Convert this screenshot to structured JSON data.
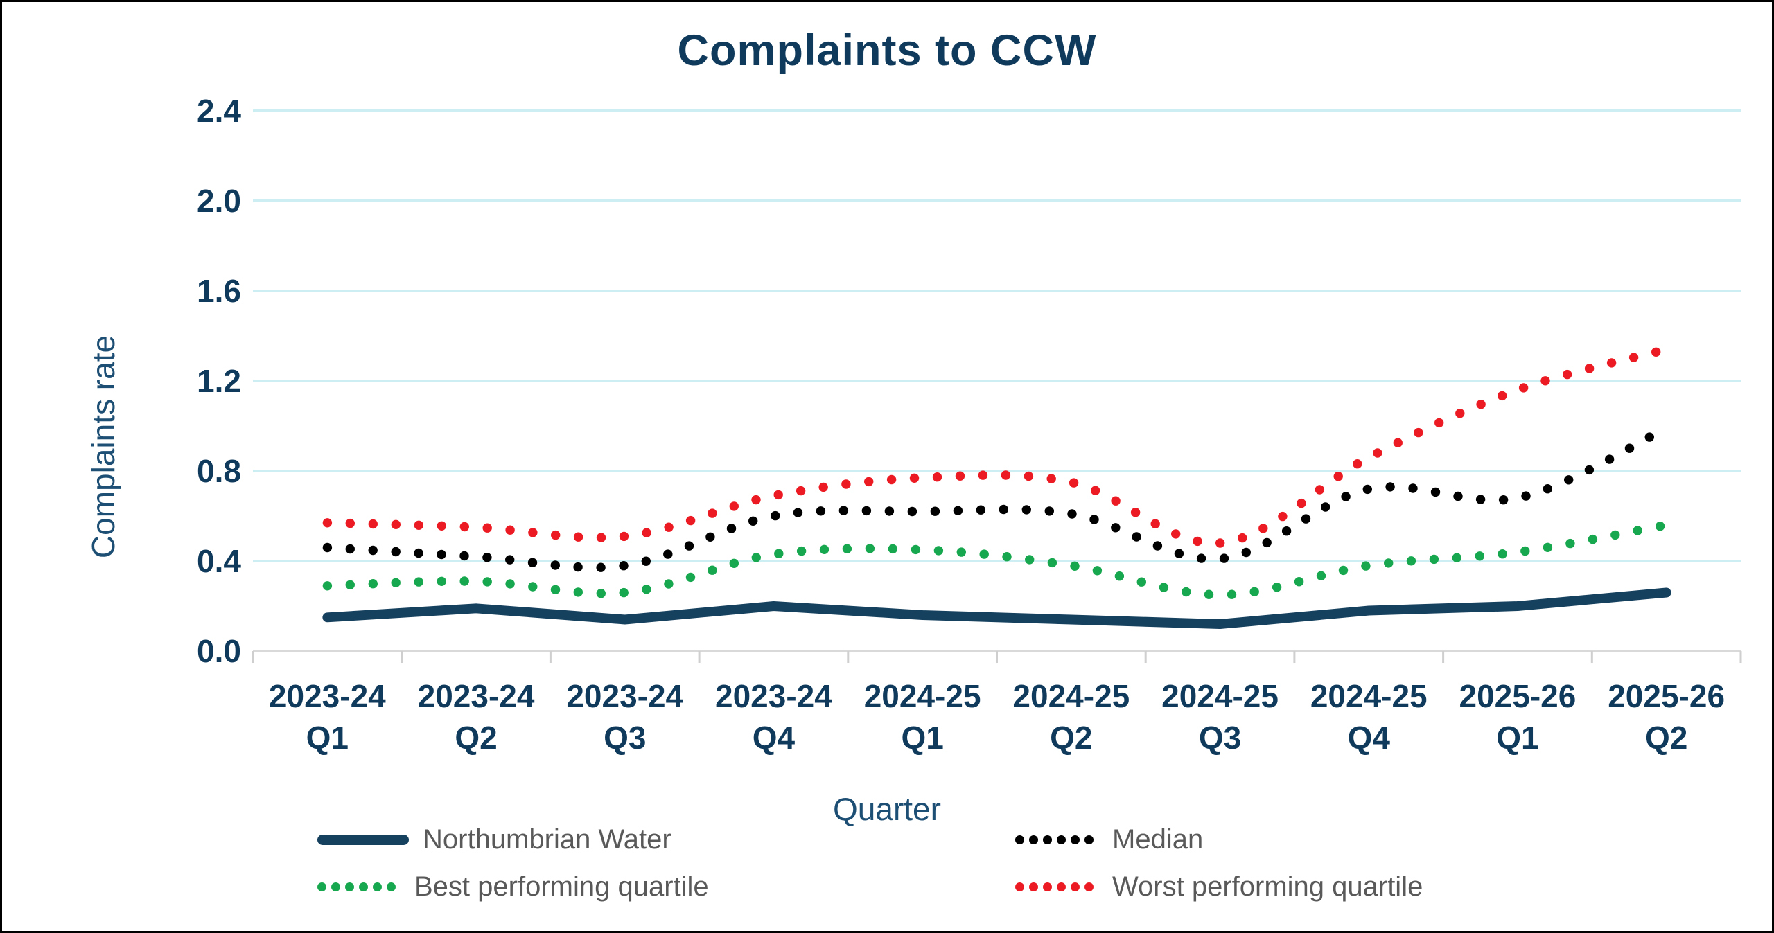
{
  "title": "Complaints to CCW",
  "y_axis": {
    "title": "Complaints rate",
    "tick_labels": [
      "0.0",
      "0.4",
      "0.8",
      "1.2",
      "1.6",
      "2.0",
      "2.4"
    ]
  },
  "x_axis": {
    "title": "Quarter",
    "tick_labels": [
      [
        "2023-24",
        "Q1"
      ],
      [
        "2023-24",
        "Q2"
      ],
      [
        "2023-24",
        "Q3"
      ],
      [
        "2023-24",
        "Q4"
      ],
      [
        "2024-25",
        "Q1"
      ],
      [
        "2024-25",
        "Q2"
      ],
      [
        "2024-25",
        "Q3"
      ],
      [
        "2024-25",
        "Q4"
      ],
      [
        "2025-26",
        "Q1"
      ],
      [
        "2025-26",
        "Q2"
      ]
    ]
  },
  "legend": {
    "items": [
      {
        "label": "Northumbrian Water",
        "style": "solid",
        "color": "#15405E"
      },
      {
        "label": "Median",
        "style": "dotted",
        "color": "#000000"
      },
      {
        "label": "Best performing quartile",
        "style": "dotted",
        "color": "#17A74E"
      },
      {
        "label": "Worst performing quartile",
        "style": "dotted",
        "color": "#EC1B23"
      }
    ]
  },
  "colors": {
    "title_text": "#0F3A5C",
    "tick_text": "#0F3A5C",
    "axis_title_text": "#1D4E74",
    "legend_text": "#595959",
    "gridline": "#CDEFF3",
    "axis_line": "#D9D9D9",
    "tick_mark": "#CFCFCF"
  },
  "chart_data": {
    "type": "line",
    "title": "Complaints to CCW",
    "xlabel": "Quarter",
    "ylabel": "Complaints rate",
    "ylim": [
      0,
      2.4
    ],
    "y_tick_step": 0.4,
    "grid": "horizontal",
    "legend_position": "bottom",
    "categories": [
      "2023-24 Q1",
      "2023-24 Q2",
      "2023-24 Q3",
      "2023-24 Q4",
      "2024-25 Q1",
      "2024-25 Q2",
      "2024-25 Q3",
      "2024-25 Q4",
      "2025-26 Q1",
      "2025-26 Q2"
    ],
    "series": [
      {
        "name": "Northumbrian Water",
        "style": "solid",
        "color": "#15405E",
        "values": [
          0.15,
          0.19,
          0.14,
          0.2,
          0.16,
          0.14,
          0.12,
          0.18,
          0.2,
          0.26
        ]
      },
      {
        "name": "Median",
        "style": "dotted",
        "color": "#000000",
        "values": [
          0.46,
          0.42,
          0.38,
          0.6,
          0.62,
          0.61,
          0.41,
          0.72,
          0.68,
          0.99
        ]
      },
      {
        "name": "Best performing quartile",
        "style": "dotted",
        "color": "#17A74E",
        "values": [
          0.29,
          0.31,
          0.26,
          0.43,
          0.45,
          0.38,
          0.25,
          0.38,
          0.44,
          0.56
        ]
      },
      {
        "name": "Worst performing quartile",
        "style": "dotted",
        "color": "#EC1B23",
        "values": [
          0.57,
          0.55,
          0.51,
          0.69,
          0.77,
          0.75,
          0.48,
          0.86,
          1.16,
          1.34
        ]
      }
    ]
  }
}
